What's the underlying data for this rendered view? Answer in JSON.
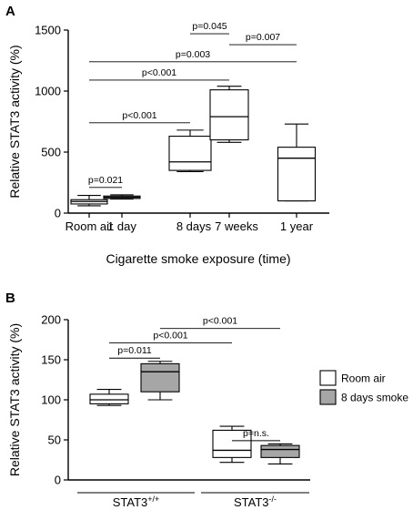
{
  "chart_data": [
    {
      "panel": "A",
      "type": "box",
      "xlabel": "Cigarette smoke exposure (time)",
      "ylabel": "Relative STAT3 activity (%)",
      "ylim": [
        0,
        1500
      ],
      "yticks": [
        0,
        500,
        1000,
        1500
      ],
      "categories": [
        "Room air",
        "1 day",
        "8 days",
        "7 weeks",
        "1 year"
      ],
      "boxes": [
        {
          "category": "Room air",
          "min": 60,
          "q1": 75,
          "median": 95,
          "q3": 110,
          "max": 145,
          "fill": "#ffffff"
        },
        {
          "category": "1 day",
          "min": 115,
          "q1": 120,
          "median": 130,
          "q3": 140,
          "max": 150,
          "fill": "#ffffff"
        },
        {
          "category": "8 days",
          "min": 340,
          "q1": 350,
          "median": 420,
          "q3": 630,
          "max": 680,
          "fill": "#ffffff"
        },
        {
          "category": "7 weeks",
          "min": 580,
          "q1": 600,
          "median": 790,
          "q3": 1010,
          "max": 1040,
          "fill": "#ffffff"
        },
        {
          "category": "1 year",
          "min": 100,
          "q1": 100,
          "median": 450,
          "q3": 540,
          "max": 730,
          "fill": "#ffffff"
        }
      ],
      "significance": [
        {
          "from": 0,
          "to": 1,
          "label": "p=0.021",
          "y": 210
        },
        {
          "from": 0,
          "to": 2,
          "label": "p<0.001",
          "y": 740
        },
        {
          "from": 0,
          "to": 3,
          "label": "p<0.001",
          "y": 1090
        },
        {
          "from": 0,
          "to": 4,
          "label": "p=0.003",
          "y": 1240
        },
        {
          "from": 2,
          "to": 3,
          "label": "p=0.045",
          "y": 1470
        },
        {
          "from": 3,
          "to": 4,
          "label": "p=0.007",
          "y": 1380
        }
      ]
    },
    {
      "panel": "B",
      "type": "box",
      "xlabel": "",
      "ylabel": "Relative STAT3 activity (%)",
      "ylim": [
        0,
        200
      ],
      "yticks": [
        0,
        50,
        100,
        150,
        200
      ],
      "groups": [
        {
          "base": "STAT3",
          "sup": "+/+"
        },
        {
          "base": "STAT3",
          "sup": "-/-"
        }
      ],
      "series": [
        {
          "name": "Room air",
          "fill": "#ffffff"
        },
        {
          "name": "8 days smoke",
          "fill": "#a6a6a6"
        }
      ],
      "boxes": [
        {
          "group": 0,
          "series": 0,
          "min": 93,
          "q1": 95,
          "median": 100,
          "q3": 107,
          "max": 113
        },
        {
          "group": 0,
          "series": 1,
          "min": 100,
          "q1": 110,
          "median": 135,
          "q3": 145,
          "max": 148
        },
        {
          "group": 1,
          "series": 0,
          "min": 22,
          "q1": 28,
          "median": 37,
          "q3": 62,
          "max": 67
        },
        {
          "group": 1,
          "series": 1,
          "min": 20,
          "q1": 28,
          "median": 38,
          "q3": 43,
          "max": 45
        }
      ],
      "significance": [
        {
          "from": [
            0,
            0
          ],
          "to": [
            0,
            1
          ],
          "label": "p=0.011",
          "y": 152
        },
        {
          "from": [
            0,
            0
          ],
          "to": [
            1,
            0
          ],
          "label": "p<0.001",
          "y": 171
        },
        {
          "from": [
            0,
            1
          ],
          "to": [
            1,
            1
          ],
          "label": "p<0.001",
          "y": 189
        },
        {
          "from": [
            1,
            0
          ],
          "to": [
            1,
            1
          ],
          "label": "p=n.s.",
          "y": 49
        }
      ]
    }
  ],
  "panel_labels": [
    "A",
    "B"
  ]
}
